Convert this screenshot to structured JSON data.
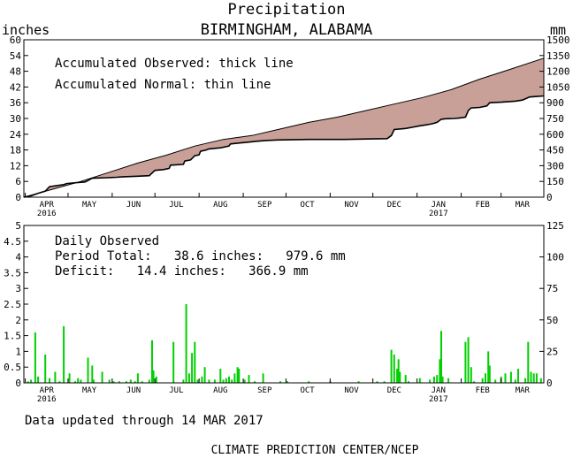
{
  "header": {
    "title": "Precipitation",
    "location": "BIRMINGHAM, ALABAMA"
  },
  "footer": {
    "updated": "Data updated through 14 MAR 2017",
    "credit": "CLIMATE PREDICTION CENTER/NCEP"
  },
  "colors": {
    "deficit_fill": "#c8a098",
    "daily_bars": "#00d000",
    "axes": "#000000"
  },
  "chart_data": [
    {
      "type": "area",
      "name": "accumulated",
      "ylabel_left": "inches",
      "ylabel_right": "mm",
      "ylim": [
        0,
        60
      ],
      "yticks_left": [
        "0",
        "6",
        "12",
        "18",
        "24",
        "30",
        "36",
        "42",
        "48",
        "54",
        "60"
      ],
      "yticks_right": [
        "0",
        "150",
        "300",
        "450",
        "600",
        "750",
        "900",
        "1050",
        "1200",
        "1350",
        "1500"
      ],
      "legend": [
        "Accumulated Observed: thick line",
        "Accumulated Normal: thin line"
      ],
      "x_months": [
        {
          "label": "APR",
          "year": "2016",
          "day": 16
        },
        {
          "label": "MAY",
          "year": "",
          "day": 46
        },
        {
          "label": "JUN",
          "year": "",
          "day": 77
        },
        {
          "label": "JUL",
          "year": "",
          "day": 107
        },
        {
          "label": "AUG",
          "year": "",
          "day": 138
        },
        {
          "label": "SEP",
          "year": "",
          "day": 169
        },
        {
          "label": "OCT",
          "year": "",
          "day": 199
        },
        {
          "label": "NOV",
          "year": "",
          "day": 230
        },
        {
          "label": "DEC",
          "year": "",
          "day": 260
        },
        {
          "label": "JAN",
          "year": "2017",
          "day": 291
        },
        {
          "label": "FEB",
          "year": "",
          "day": 322
        },
        {
          "label": "MAR",
          "year": "",
          "day": 350
        }
      ],
      "x_range_days": [
        0,
        365
      ],
      "normal": [
        [
          0,
          0
        ],
        [
          20,
          3
        ],
        [
          40,
          6
        ],
        [
          60,
          9.5
        ],
        [
          80,
          13
        ],
        [
          100,
          16
        ],
        [
          120,
          19.5
        ],
        [
          140,
          22
        ],
        [
          160,
          23.5
        ],
        [
          180,
          26
        ],
        [
          200,
          28.5
        ],
        [
          220,
          30.5
        ],
        [
          240,
          33
        ],
        [
          260,
          35.5
        ],
        [
          280,
          38
        ],
        [
          300,
          41
        ],
        [
          320,
          45
        ],
        [
          340,
          48.5
        ],
        [
          365,
          53
        ]
      ],
      "observed": [
        [
          0,
          0
        ],
        [
          5,
          0.5
        ],
        [
          10,
          1.5
        ],
        [
          15,
          2.3
        ],
        [
          18,
          4
        ],
        [
          28,
          4.8
        ],
        [
          30,
          5.2
        ],
        [
          38,
          5.6
        ],
        [
          43,
          5.8
        ],
        [
          48,
          7.2
        ],
        [
          58,
          7.4
        ],
        [
          65,
          7.6
        ],
        [
          70,
          7.8
        ],
        [
          80,
          8.0
        ],
        [
          88,
          8.2
        ],
        [
          92,
          10.2
        ],
        [
          98,
          10.5
        ],
        [
          102,
          11.0
        ],
        [
          103,
          12.2
        ],
        [
          112,
          12.5
        ],
        [
          113,
          13.8
        ],
        [
          117,
          14.2
        ],
        [
          120,
          15.8
        ],
        [
          123,
          16.1
        ],
        [
          124,
          17.5
        ],
        [
          128,
          18.0
        ],
        [
          130,
          18.4
        ],
        [
          138,
          18.8
        ],
        [
          144,
          19.5
        ],
        [
          145,
          20.3
        ],
        [
          150,
          20.6
        ],
        [
          158,
          21.0
        ],
        [
          163,
          21.3
        ],
        [
          170,
          21.6
        ],
        [
          178,
          21.8
        ],
        [
          200,
          22.0
        ],
        [
          225,
          22.0
        ],
        [
          245,
          22.2
        ],
        [
          255,
          22.3
        ],
        [
          258,
          23.5
        ],
        [
          260,
          25.8
        ],
        [
          268,
          26.2
        ],
        [
          272,
          26.6
        ],
        [
          278,
          27.2
        ],
        [
          283,
          27.6
        ],
        [
          287,
          28.0
        ],
        [
          290,
          28.5
        ],
        [
          293,
          29.7
        ],
        [
          296,
          29.9
        ],
        [
          302,
          30.0
        ],
        [
          306,
          30.2
        ],
        [
          310,
          30.5
        ],
        [
          312,
          33.0
        ],
        [
          314,
          34.0
        ],
        [
          320,
          34.2
        ],
        [
          325,
          34.8
        ],
        [
          327,
          36.0
        ],
        [
          335,
          36.2
        ],
        [
          345,
          36.6
        ],
        [
          350,
          37.0
        ],
        [
          355,
          38.2
        ],
        [
          360,
          38.4
        ],
        [
          365,
          38.6
        ]
      ]
    },
    {
      "type": "bar",
      "name": "daily",
      "ylim": [
        0,
        5
      ],
      "yticks_left": [
        "0",
        "0.5",
        "1",
        "1.5",
        "2",
        "2.5",
        "3",
        "3.5",
        "4",
        "4.5",
        "5"
      ],
      "yticks_right": [
        "0",
        "25",
        "50",
        "75",
        "100",
        "125"
      ],
      "annotations": [
        "Daily Observed",
        "Period Total:   38.6 inches:   979.6 mm",
        "Deficit:   14.4 inches:   366.9 mm"
      ],
      "x_months": [
        {
          "label": "APR",
          "year": "2016",
          "day": 16
        },
        {
          "label": "MAY",
          "year": "",
          "day": 46
        },
        {
          "label": "JUN",
          "year": "",
          "day": 77
        },
        {
          "label": "JUL",
          "year": "",
          "day": 107
        },
        {
          "label": "AUG",
          "year": "",
          "day": 138
        },
        {
          "label": "SEP",
          "year": "",
          "day": 169
        },
        {
          "label": "OCT",
          "year": "",
          "day": 199
        },
        {
          "label": "NOV",
          "year": "",
          "day": 230
        },
        {
          "label": "DEC",
          "year": "",
          "day": 260
        },
        {
          "label": "JAN",
          "year": "2017",
          "day": 291
        },
        {
          "label": "FEB",
          "year": "",
          "day": 322
        },
        {
          "label": "MAR",
          "year": "",
          "day": 350
        }
      ],
      "x_range_days": [
        0,
        365
      ],
      "bars": [
        [
          3,
          0.05
        ],
        [
          5,
          0.1
        ],
        [
          8,
          1.6
        ],
        [
          10,
          0.2
        ],
        [
          15,
          0.9
        ],
        [
          18,
          0.15
        ],
        [
          22,
          0.35
        ],
        [
          25,
          0.05
        ],
        [
          28,
          1.8
        ],
        [
          32,
          0.3
        ],
        [
          36,
          0.05
        ],
        [
          38,
          0.15
        ],
        [
          40,
          0.1
        ],
        [
          45,
          0.8
        ],
        [
          48,
          0.55
        ],
        [
          49,
          0.1
        ],
        [
          55,
          0.35
        ],
        [
          60,
          0.1
        ],
        [
          63,
          0.05
        ],
        [
          67,
          0.05
        ],
        [
          72,
          0.05
        ],
        [
          75,
          0.1
        ],
        [
          78,
          0.05
        ],
        [
          80,
          0.3
        ],
        [
          83,
          0.05
        ],
        [
          88,
          0.1
        ],
        [
          90,
          1.35
        ],
        [
          91,
          0.4
        ],
        [
          93,
          0.2
        ],
        [
          105,
          1.3
        ],
        [
          112,
          0.1
        ],
        [
          114,
          2.5
        ],
        [
          116,
          0.3
        ],
        [
          118,
          0.95
        ],
        [
          120,
          1.3
        ],
        [
          122,
          0.1
        ],
        [
          125,
          0.2
        ],
        [
          127,
          0.5
        ],
        [
          130,
          0.1
        ],
        [
          134,
          0.1
        ],
        [
          138,
          0.45
        ],
        [
          140,
          0.1
        ],
        [
          142,
          0.15
        ],
        [
          144,
          0.2
        ],
        [
          146,
          0.1
        ],
        [
          148,
          0.3
        ],
        [
          150,
          0.5
        ],
        [
          151,
          0.45
        ],
        [
          155,
          0.1
        ],
        [
          158,
          0.25
        ],
        [
          162,
          0.05
        ],
        [
          168,
          0.3
        ],
        [
          180,
          0.05
        ],
        [
          185,
          0.05
        ],
        [
          200,
          0.05
        ],
        [
          215,
          0.05
        ],
        [
          235,
          0.05
        ],
        [
          248,
          0.05
        ],
        [
          253,
          0.05
        ],
        [
          258,
          1.05
        ],
        [
          260,
          0.9
        ],
        [
          262,
          0.45
        ],
        [
          263,
          0.75
        ],
        [
          264,
          0.35
        ],
        [
          268,
          0.25
        ],
        [
          270,
          0.05
        ],
        [
          278,
          0.15
        ],
        [
          285,
          0.1
        ],
        [
          288,
          0.2
        ],
        [
          290,
          0.25
        ],
        [
          292,
          0.75
        ],
        [
          293,
          1.65
        ],
        [
          294,
          0.2
        ],
        [
          298,
          0.15
        ],
        [
          310,
          1.3
        ],
        [
          312,
          1.45
        ],
        [
          314,
          0.5
        ],
        [
          316,
          0.05
        ],
        [
          322,
          0.15
        ],
        [
          324,
          0.3
        ],
        [
          326,
          1.0
        ],
        [
          327,
          0.55
        ],
        [
          331,
          0.1
        ],
        [
          335,
          0.2
        ],
        [
          338,
          0.3
        ],
        [
          342,
          0.35
        ],
        [
          345,
          0.1
        ],
        [
          347,
          0.45
        ],
        [
          352,
          0.15
        ],
        [
          354,
          1.3
        ],
        [
          356,
          0.35
        ],
        [
          358,
          0.3
        ],
        [
          360,
          0.3
        ],
        [
          363,
          0.15
        ]
      ]
    }
  ]
}
